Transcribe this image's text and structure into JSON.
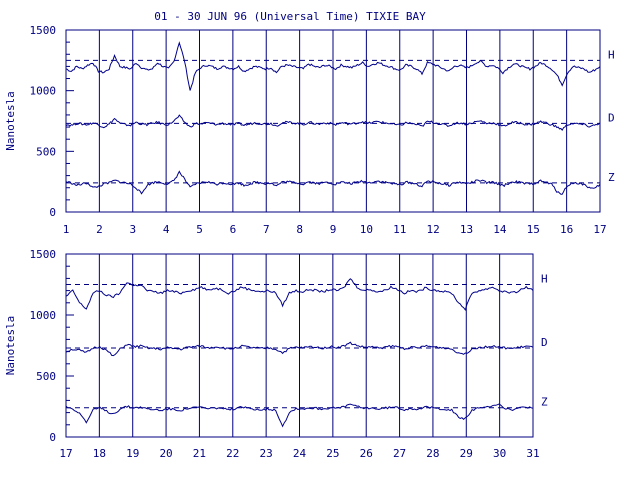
{
  "chart_data": {
    "type": "line",
    "title": "01 - 30 JUN 96 (Universal Time) TIXIE BAY",
    "ylabel": "Nanotesla",
    "ylim": [
      0,
      1500
    ],
    "yticks": [
      "0",
      "500",
      "1000",
      "1500"
    ],
    "components": [
      "H",
      "D",
      "Z"
    ],
    "baselines": {
      "H": 1250,
      "D": 730,
      "Z": 240
    },
    "color": "#00008b",
    "panels": [
      {
        "xlim": [
          1,
          17
        ],
        "xticks": [
          "1",
          "2",
          "3",
          "4",
          "5",
          "6",
          "7",
          "8",
          "9",
          "10",
          "11",
          "12",
          "13",
          "14",
          "15",
          "16",
          "17"
        ],
        "series": [
          {
            "name": "H",
            "values": [
              1180,
              1160,
              1200,
              1180,
              1210,
              1230,
              1160,
              1150,
              1180,
              1290,
              1200,
              1190,
              1180,
              1230,
              1190,
              1170,
              1180,
              1230,
              1200,
              1180,
              1240,
              1400,
              1240,
              1000,
              1150,
              1190,
              1210,
              1200,
              1180,
              1200,
              1190,
              1180,
              1200,
              1160,
              1180,
              1200,
              1190,
              1180,
              1190,
              1150,
              1200,
              1210,
              1200,
              1190,
              1180,
              1220,
              1200,
              1190,
              1210,
              1200,
              1180,
              1210,
              1200,
              1190,
              1210,
              1230,
              1200,
              1220,
              1230,
              1210,
              1200,
              1180,
              1170,
              1210,
              1200,
              1180,
              1140,
              1230,
              1220,
              1200,
              1180,
              1160,
              1200,
              1210,
              1190,
              1200,
              1230,
              1240,
              1200,
              1210,
              1190,
              1150,
              1190,
              1220,
              1210,
              1190,
              1180,
              1200,
              1230,
              1210,
              1180,
              1130,
              1050,
              1150,
              1200,
              1190,
              1180,
              1150,
              1170,
              1200
            ]
          },
          {
            "name": "D",
            "values": [
              720,
              715,
              730,
              725,
              720,
              735,
              720,
              700,
              725,
              770,
              730,
              720,
              715,
              740,
              725,
              720,
              730,
              740,
              725,
              720,
              750,
              790,
              740,
              700,
              730,
              725,
              735,
              730,
              720,
              730,
              725,
              720,
              730,
              715,
              725,
              735,
              730,
              725,
              730,
              710,
              735,
              740,
              735,
              730,
              720,
              740,
              730,
              725,
              735,
              730,
              720,
              735,
              730,
              725,
              735,
              745,
              730,
              740,
              745,
              735,
              730,
              720,
              715,
              735,
              730,
              720,
              705,
              745,
              740,
              730,
              720,
              710,
              730,
              735,
              725,
              730,
              745,
              750,
              730,
              735,
              725,
              705,
              725,
              740,
              735,
              725,
              720,
              730,
              745,
              735,
              720,
              700,
              680,
              720,
              730,
              725,
              720,
              705,
              715,
              735
            ]
          },
          {
            "name": "Z",
            "values": [
              250,
              240,
              220,
              230,
              240,
              200,
              210,
              230,
              240,
              260,
              250,
              240,
              230,
              200,
              150,
              220,
              240,
              250,
              240,
              230,
              260,
              330,
              270,
              200,
              230,
              240,
              250,
              240,
              230,
              240,
              235,
              230,
              240,
              220,
              230,
              245,
              240,
              235,
              240,
              215,
              245,
              250,
              245,
              240,
              230,
              250,
              240,
              235,
              245,
              240,
              230,
              245,
              240,
              235,
              245,
              255,
              240,
              250,
              255,
              245,
              240,
              230,
              225,
              245,
              240,
              230,
              210,
              255,
              250,
              240,
              230,
              220,
              240,
              245,
              235,
              240,
              255,
              260,
              240,
              245,
              235,
              215,
              235,
              250,
              245,
              235,
              230,
              240,
              255,
              245,
              230,
              170,
              150,
              220,
              240,
              235,
              230,
              200,
              190,
              230
            ]
          }
        ]
      },
      {
        "xlim": [
          17,
          31
        ],
        "xticks": [
          "17",
          "18",
          "19",
          "20",
          "21",
          "22",
          "23",
          "24",
          "25",
          "26",
          "27",
          "28",
          "29",
          "30",
          "31"
        ],
        "series": [
          {
            "name": "H",
            "values": [
              1150,
              1200,
              1100,
              1050,
              1180,
              1200,
              1160,
              1150,
              1180,
              1270,
              1240,
              1250,
              1200,
              1190,
              1180,
              1200,
              1190,
              1180,
              1200,
              1210,
              1230,
              1200,
              1220,
              1210,
              1180,
              1200,
              1230,
              1210,
              1200,
              1190,
              1200,
              1180,
              1080,
              1180,
              1200,
              1190,
              1210,
              1200,
              1190,
              1210,
              1200,
              1220,
              1300,
              1230,
              1200,
              1210,
              1190,
              1200,
              1230,
              1210,
              1180,
              1200,
              1190,
              1220,
              1210,
              1200,
              1190,
              1180,
              1100,
              1050,
              1180,
              1200,
              1210,
              1230,
              1200,
              1190,
              1180,
              1200,
              1230,
              1200
            ]
          },
          {
            "name": "D",
            "values": [
              700,
              720,
              710,
              690,
              730,
              740,
              710,
              660,
              720,
              760,
              740,
              745,
              730,
              725,
              720,
              730,
              725,
              720,
              735,
              740,
              745,
              730,
              740,
              735,
              720,
              730,
              745,
              735,
              730,
              725,
              730,
              720,
              690,
              725,
              735,
              730,
              740,
              735,
              730,
              740,
              735,
              745,
              770,
              750,
              735,
              740,
              730,
              735,
              745,
              740,
              725,
              735,
              730,
              745,
              740,
              735,
              730,
              720,
              690,
              680,
              725,
              735,
              740,
              745,
              735,
              730,
              725,
              735,
              745,
              735
            ]
          },
          {
            "name": "Z",
            "values": [
              250,
              230,
              200,
              120,
              220,
              240,
              210,
              190,
              230,
              250,
              240,
              245,
              230,
              225,
              220,
              230,
              225,
              220,
              235,
              240,
              245,
              230,
              240,
              235,
              220,
              230,
              245,
              235,
              230,
              225,
              230,
              220,
              90,
              200,
              235,
              230,
              240,
              235,
              230,
              240,
              235,
              245,
              270,
              250,
              235,
              240,
              230,
              235,
              245,
              240,
              225,
              235,
              230,
              245,
              240,
              235,
              230,
              220,
              160,
              150,
              220,
              235,
              240,
              260,
              270,
              230,
              225,
              235,
              245,
              235
            ]
          }
        ]
      }
    ]
  }
}
